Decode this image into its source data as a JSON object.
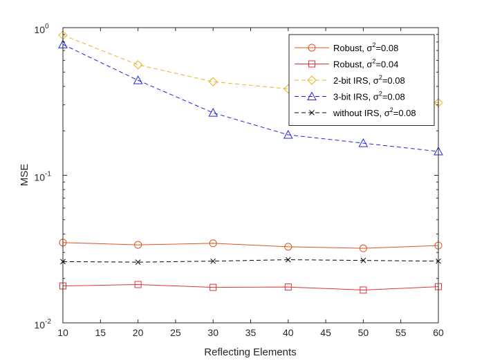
{
  "chart_data": {
    "type": "line",
    "xlabel": "Reflecting Elements",
    "ylabel": "MSE",
    "xlim": [
      10,
      60
    ],
    "ylim": [
      0.01,
      1
    ],
    "yscale": "log",
    "xticks": [
      10,
      15,
      20,
      25,
      30,
      35,
      40,
      45,
      50,
      55,
      60
    ],
    "yticks": [
      {
        "value": 0.01,
        "base": "10",
        "exp": "-2"
      },
      {
        "value": 0.1,
        "base": "10",
        "exp": "-1"
      },
      {
        "value": 1,
        "base": "10",
        "exp": "0"
      }
    ],
    "legend_position": "top-right",
    "grid": false,
    "x": [
      10,
      20,
      30,
      40,
      50,
      60
    ],
    "series": [
      {
        "name_prefix": "Robust, σ",
        "name_sup": "2",
        "name_suffix": "=0.08",
        "marker": "circle",
        "dash": "solid",
        "color": "#D95319",
        "values": [
          0.035,
          0.0338,
          0.0346,
          0.0328,
          0.032,
          0.0334
        ]
      },
      {
        "name_prefix": "Robust, σ",
        "name_sup": "2",
        "name_suffix": "=0.04",
        "marker": "square",
        "dash": "solid",
        "color": "#E03030",
        "values": [
          0.0178,
          0.0182,
          0.0174,
          0.0175,
          0.0167,
          0.0176
        ]
      },
      {
        "name_prefix": "2-bit IRS, σ",
        "name_sup": "2",
        "name_suffix": "=0.08",
        "marker": "diamond",
        "dash": "dashed",
        "color": "#EDB120",
        "values": [
          0.89,
          0.56,
          0.43,
          0.385,
          0.355,
          0.31
        ]
      },
      {
        "name_prefix": "3-bit IRS, σ",
        "name_sup": "2",
        "name_suffix": "=0.08",
        "marker": "triangle",
        "dash": "dashed",
        "color": "#2020E0",
        "values": [
          0.77,
          0.44,
          0.265,
          0.188,
          0.165,
          0.145
        ]
      },
      {
        "name_prefix": "without IRS, σ",
        "name_sup": "2",
        "name_suffix": "=0.08",
        "marker": "x",
        "dash": "dashed",
        "color": "#000000",
        "values": [
          0.026,
          0.0258,
          0.0262,
          0.0268,
          0.0265,
          0.0262
        ]
      }
    ]
  }
}
